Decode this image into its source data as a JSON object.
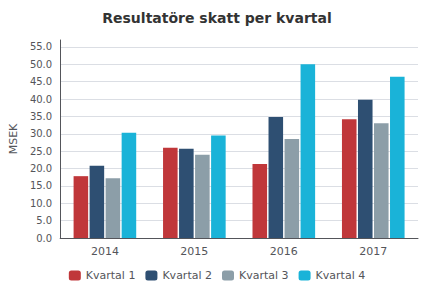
{
  "chart_data": {
    "type": "bar",
    "title": "Resultatöre skatt per kvartal",
    "categories": [
      "2014",
      "2015",
      "2016",
      "2017"
    ],
    "series": [
      {
        "name": "Kvartal 1",
        "color": "#c0373a",
        "values": [
          17.8,
          26.0,
          21.3,
          34.2
        ]
      },
      {
        "name": "Kvartal 2",
        "color": "#2e4f72",
        "values": [
          20.8,
          25.7,
          34.8,
          39.8
        ]
      },
      {
        "name": "Kvartal 3",
        "color": "#8c9ea8",
        "values": [
          17.2,
          24.0,
          28.5,
          33.0
        ]
      },
      {
        "name": "Kvartal 4",
        "color": "#1ab3d8",
        "values": [
          30.3,
          29.5,
          50.0,
          46.4
        ]
      }
    ],
    "ylabel": "MSEK",
    "ylim": [
      0,
      57
    ],
    "yticks": [
      {
        "value": 0.0,
        "label": "0.0"
      },
      {
        "value": 5.0,
        "label": "5.0"
      },
      {
        "value": 10.0,
        "label": "10.0"
      },
      {
        "value": 15.0,
        "label": "15.0"
      },
      {
        "value": 20.0,
        "label": "20.0"
      },
      {
        "value": 25.0,
        "label": "25.0"
      },
      {
        "value": 30.0,
        "label": "30.0"
      },
      {
        "value": 35.0,
        "label": "35.0"
      },
      {
        "value": 40.0,
        "label": "40.0"
      },
      {
        "value": 45.0,
        "label": "45.0"
      },
      {
        "value": 50.0,
        "label": "50.0"
      },
      {
        "value": 55.0,
        "label": "55.0"
      }
    ],
    "grid": true,
    "legend": "bottom"
  }
}
